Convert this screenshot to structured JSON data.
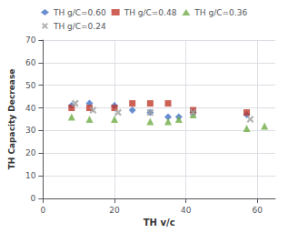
{
  "chart_data": {
    "type": "scatter",
    "xlabel": "TH v/c",
    "ylabel": "TH Capacity Decrease",
    "xlim": [
      0,
      65
    ],
    "ylim": [
      0,
      70
    ],
    "xticks": [
      0,
      20,
      40,
      60
    ],
    "yticks": [
      0,
      10,
      20,
      30,
      40,
      50,
      60,
      70
    ],
    "grid": true,
    "legend": "top",
    "series": [
      {
        "name": "TH g/C=0.60",
        "color": "#4472C4",
        "marker": "diamond",
        "x": [
          8,
          13,
          20,
          25,
          30,
          35,
          38,
          42,
          57
        ],
        "values": [
          41,
          42,
          41,
          39,
          38,
          36,
          36,
          38,
          37
        ]
      },
      {
        "name": "TH g/C=0.48",
        "color": "#C0392B",
        "marker": "square",
        "x": [
          8,
          13,
          20,
          25,
          30,
          35,
          42,
          57
        ],
        "values": [
          40,
          40,
          40,
          42,
          42,
          42,
          39,
          38
        ]
      },
      {
        "name": "TH g/C=0.36",
        "color": "#70AD47",
        "marker": "triangle",
        "x": [
          8,
          13,
          20,
          30,
          35,
          38,
          42,
          57,
          62
        ],
        "values": [
          36,
          35,
          35,
          34,
          34,
          35,
          37,
          31,
          32
        ]
      },
      {
        "name": "TH g/C=0.24",
        "color": "#A0A0A0",
        "marker": "x",
        "x": [
          9,
          14,
          21,
          30,
          42,
          58
        ],
        "values": [
          42,
          39,
          38,
          38,
          38,
          35
        ]
      }
    ]
  }
}
